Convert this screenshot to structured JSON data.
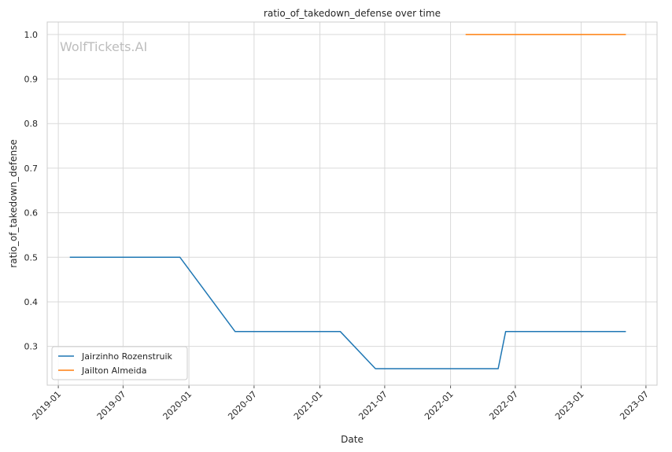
{
  "chart_data": {
    "type": "line",
    "title": "ratio_of_takedown_defense over time",
    "xlabel": "Date",
    "ylabel": "ratio_of_takedown_defense",
    "watermark": "WolfTickets.AI",
    "x_ticks": [
      "2019-01",
      "2019-07",
      "2020-01",
      "2020-07",
      "2021-01",
      "2021-07",
      "2022-01",
      "2022-07",
      "2023-01",
      "2023-07"
    ],
    "y_ticks": [
      "0.3",
      "0.4",
      "0.5",
      "0.6",
      "0.7",
      "0.8",
      "0.9",
      "1.0"
    ],
    "xlim": [
      "2018-12-01",
      "2023-08-01"
    ],
    "ylim": [
      0.213,
      1.028
    ],
    "grid": true,
    "legend_position": "lower-left",
    "series": [
      {
        "name": "Jairzinho Rozenstruik",
        "color": "#1f77b4",
        "points": [
          {
            "x": "2019-02-02",
            "y": 0.5
          },
          {
            "x": "2019-12-07",
            "y": 0.5
          },
          {
            "x": "2020-05-09",
            "y": 0.3333
          },
          {
            "x": "2021-02-27",
            "y": 0.3333
          },
          {
            "x": "2021-06-05",
            "y": 0.25
          },
          {
            "x": "2022-05-14",
            "y": 0.25
          },
          {
            "x": "2022-06-04",
            "y": 0.3333
          },
          {
            "x": "2023-05-06",
            "y": 0.3333
          }
        ]
      },
      {
        "name": "Jailton Almeida",
        "color": "#ff7f0e",
        "points": [
          {
            "x": "2022-02-12",
            "y": 1.0
          },
          {
            "x": "2023-05-06",
            "y": 1.0
          }
        ]
      }
    ]
  }
}
